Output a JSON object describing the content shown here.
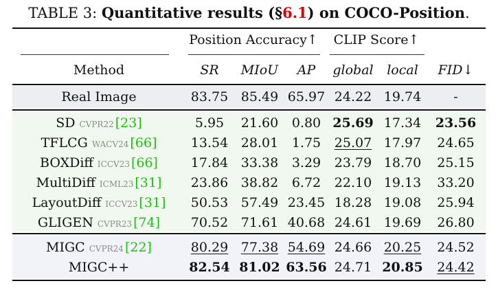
{
  "caption": {
    "prefix": "TABLE 3:",
    "title_start": "Quantitative results (§",
    "ref": "6.1",
    "title_end": ") on COCO-Position",
    "period": "."
  },
  "header": {
    "group_position": "Position Accuracy↑",
    "group_clip": "CLIP Score↑",
    "method": "Method",
    "sr": "SR",
    "miou": "MIoU",
    "ap": "AP",
    "global": "global",
    "local": "local",
    "fid": "FID↓"
  },
  "colors": {
    "real_band": "#eceef1",
    "baseline_band": "#f1f8f0",
    "ours_band": "#f1f3f9",
    "cite": "#19c40a",
    "ref": "#e00000",
    "venue": "#8a8a8a"
  },
  "rows": [
    {
      "method": "Real Image",
      "venue": "",
      "cite": "",
      "sr": "83.75",
      "miou": "85.49",
      "ap": "65.97",
      "global": "24.22",
      "local": "19.74",
      "fid": "-"
    },
    {
      "method": "SD",
      "venue": "CVPR22",
      "cite": "[23]",
      "sr": "5.95",
      "miou": "21.60",
      "ap": "0.80",
      "global": "25.69",
      "local": "17.34",
      "fid": "23.56"
    },
    {
      "method": "TFLCG",
      "venue": "WACV24",
      "cite": "[66]",
      "sr": "13.54",
      "miou": "28.01",
      "ap": "1.75",
      "global": "25.07",
      "local": "17.97",
      "fid": "24.65"
    },
    {
      "method": "BOXDiff",
      "venue": "ICCV23",
      "cite": "[66]",
      "sr": "17.84",
      "miou": "33.38",
      "ap": "3.29",
      "global": "23.79",
      "local": "18.70",
      "fid": "25.15"
    },
    {
      "method": "MultiDiff",
      "venue": "ICML23",
      "cite": "[31]",
      "sr": "23.86",
      "miou": "38.82",
      "ap": "6.72",
      "global": "22.10",
      "local": "19.13",
      "fid": "33.20"
    },
    {
      "method": "LayoutDiff",
      "venue": "ICCV23",
      "cite": "[31]",
      "sr": "50.53",
      "miou": "57.49",
      "ap": "23.45",
      "global": "18.28",
      "local": "19.08",
      "fid": "25.94"
    },
    {
      "method": "GLIGEN",
      "venue": "CVPR23",
      "cite": "[74]",
      "sr": "70.52",
      "miou": "71.61",
      "ap": "40.68",
      "global": "24.61",
      "local": "19.69",
      "fid": "26.80"
    },
    {
      "method": "MIGC",
      "venue": "CVPR24",
      "cite": "[22]",
      "sr": "80.29",
      "miou": "77.38",
      "ap": "54.69",
      "global": "24.66",
      "local": "20.25",
      "fid": "24.52"
    },
    {
      "method": "MIGC++",
      "venue": "",
      "cite": "",
      "sr": "82.54",
      "miou": "81.02",
      "ap": "63.56",
      "global": "24.71",
      "local": "20.85",
      "fid": "24.42"
    }
  ]
}
